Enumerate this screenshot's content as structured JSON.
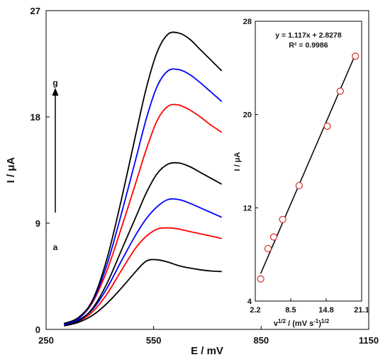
{
  "chart_data": [
    {
      "type": "line",
      "title": "",
      "xlabel": "E / mV",
      "ylabel": "I / μA",
      "xlim": [
        250,
        1150
      ],
      "ylim": [
        0,
        27
      ],
      "xticks": [
        250,
        550,
        850,
        1150
      ],
      "yticks": [
        0,
        9,
        18,
        27
      ],
      "grid": false,
      "curve_labels": {
        "start": "a",
        "end": "g"
      },
      "series": [
        {
          "color": "#000000",
          "x": [
            300,
            340,
            380,
            420,
            460,
            500,
            530,
            560,
            590,
            620,
            650,
            680,
            710,
            740
          ],
          "y": [
            0.3,
            0.6,
            1.2,
            2.2,
            3.5,
            4.9,
            5.8,
            5.9,
            5.7,
            5.4,
            5.2,
            5.05,
            4.95,
            4.9
          ]
        },
        {
          "color": "#ff0000",
          "x": [
            300,
            340,
            380,
            420,
            460,
            500,
            530,
            560,
            590,
            620,
            650,
            680,
            710,
            740
          ],
          "y": [
            0.4,
            0.7,
            1.5,
            3.0,
            5.0,
            6.9,
            7.9,
            8.5,
            8.6,
            8.5,
            8.3,
            8.1,
            7.9,
            7.7
          ]
        },
        {
          "color": "#0000ff",
          "x": [
            300,
            340,
            380,
            420,
            460,
            500,
            530,
            560,
            590,
            620,
            650,
            680,
            710,
            740
          ],
          "y": [
            0.5,
            0.8,
            1.7,
            3.5,
            5.8,
            8.0,
            9.4,
            10.4,
            11.0,
            11.0,
            10.7,
            10.3,
            9.9,
            9.5
          ]
        },
        {
          "color": "#000000",
          "x": [
            300,
            340,
            380,
            420,
            460,
            500,
            530,
            560,
            590,
            620,
            650,
            680,
            710,
            740
          ],
          "y": [
            0.4,
            0.7,
            1.8,
            3.9,
            6.7,
            9.5,
            11.6,
            13.2,
            14.0,
            14.1,
            13.8,
            13.3,
            12.8,
            12.3
          ]
        },
        {
          "color": "#ff0000",
          "x": [
            300,
            340,
            380,
            420,
            460,
            500,
            530,
            560,
            590,
            620,
            650,
            680,
            710,
            740
          ],
          "y": [
            0.5,
            0.9,
            2.3,
            5.0,
            8.6,
            12.4,
            15.3,
            17.7,
            18.9,
            19.0,
            18.6,
            18.0,
            17.3,
            16.7
          ]
        },
        {
          "color": "#0000ff",
          "x": [
            300,
            340,
            380,
            420,
            460,
            500,
            530,
            560,
            590,
            620,
            650,
            680,
            710,
            740
          ],
          "y": [
            0.4,
            0.9,
            2.4,
            5.5,
            9.8,
            14.4,
            17.9,
            20.6,
            21.9,
            22.0,
            21.6,
            20.9,
            20.1,
            19.3
          ]
        },
        {
          "color": "#000000",
          "x": [
            300,
            340,
            380,
            420,
            460,
            500,
            530,
            560,
            590,
            620,
            650,
            680,
            710,
            740
          ],
          "y": [
            0.5,
            1.0,
            2.5,
            6.0,
            11.0,
            16.5,
            20.5,
            23.5,
            25.0,
            25.1,
            24.6,
            23.7,
            22.8,
            21.9
          ]
        }
      ]
    },
    {
      "type": "scatter",
      "title": "",
      "xlabel": "v1/2 / (mV s-1)1/2",
      "ylabel": "I / μA",
      "xlim": [
        2.2,
        21.1
      ],
      "ylim": [
        4,
        28
      ],
      "xticks": [
        2.2,
        8.5,
        14.8,
        21.1
      ],
      "yticks": [
        4,
        12,
        20,
        28
      ],
      "grid": false,
      "trendline": {
        "slope": 1.117,
        "intercept": 2.8278
      },
      "equation": "y = 1.117x + 2.8278",
      "r_squared": "R² = 0.9986",
      "series": [
        {
          "x": [
            3.16,
            4.47,
            5.48,
            7.07,
            10.0,
            15.0,
            17.3,
            20.0
          ],
          "y": [
            5.9,
            8.5,
            9.5,
            11.0,
            13.9,
            19.0,
            22.0,
            25.0
          ]
        }
      ]
    }
  ]
}
